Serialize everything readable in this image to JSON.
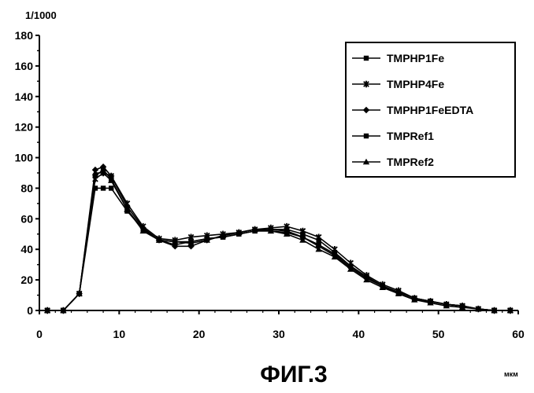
{
  "caption": "ФИГ.3",
  "chart_data": {
    "type": "line",
    "y_unit_label": "1/1000",
    "x_unit_label": "мкм",
    "xlim": [
      0,
      60
    ],
    "ylim": [
      0,
      180
    ],
    "x_ticks": [
      0,
      10,
      20,
      30,
      40,
      50,
      60
    ],
    "y_ticks": [
      0,
      20,
      40,
      60,
      80,
      100,
      120,
      140,
      160,
      180
    ],
    "grid": false,
    "legend_position": "top-right",
    "x": [
      1,
      3,
      5,
      7,
      8,
      9,
      11,
      13,
      15,
      17,
      19,
      21,
      23,
      25,
      27,
      29,
      31,
      33,
      35,
      37,
      39,
      41,
      43,
      45,
      47,
      49,
      51,
      53,
      55,
      57,
      59
    ],
    "series": [
      {
        "name": "TMPHP1Fe",
        "marker": "square",
        "values": [
          0,
          0,
          11,
          88,
          92,
          86,
          66,
          53,
          46,
          45,
          45,
          47,
          48,
          50,
          52,
          53,
          53,
          50,
          46,
          38,
          29,
          22,
          16,
          12,
          8,
          6,
          4,
          3,
          1,
          0,
          0
        ]
      },
      {
        "name": "TMPHP4Fe",
        "marker": "star",
        "values": [
          0,
          0,
          11,
          86,
          90,
          88,
          70,
          55,
          47,
          46,
          48,
          49,
          50,
          51,
          53,
          54,
          55,
          52,
          48,
          40,
          31,
          23,
          17,
          13,
          8,
          6,
          4,
          3,
          1,
          0,
          0
        ]
      },
      {
        "name": "TMPHP1FeEDTA",
        "marker": "diamond",
        "values": [
          0,
          0,
          11,
          92,
          94,
          88,
          68,
          54,
          46,
          42,
          42,
          46,
          49,
          51,
          53,
          53,
          52,
          48,
          42,
          36,
          28,
          21,
          16,
          12,
          8,
          6,
          4,
          3,
          1,
          0,
          0
        ]
      },
      {
        "name": "TMPRef1",
        "marker": "square",
        "values": [
          0,
          0,
          11,
          80,
          80,
          80,
          65,
          53,
          46,
          43,
          45,
          47,
          48,
          50,
          52,
          52,
          51,
          48,
          43,
          37,
          29,
          22,
          16,
          11,
          7,
          6,
          4,
          3,
          1,
          0,
          0
        ]
      },
      {
        "name": "TMPRef2",
        "marker": "triangle",
        "values": [
          0,
          0,
          11,
          90,
          90,
          85,
          66,
          52,
          46,
          45,
          44,
          46,
          49,
          51,
          53,
          52,
          50,
          46,
          40,
          35,
          27,
          20,
          15,
          11,
          7,
          5,
          3,
          2,
          1,
          0,
          0
        ]
      }
    ]
  }
}
